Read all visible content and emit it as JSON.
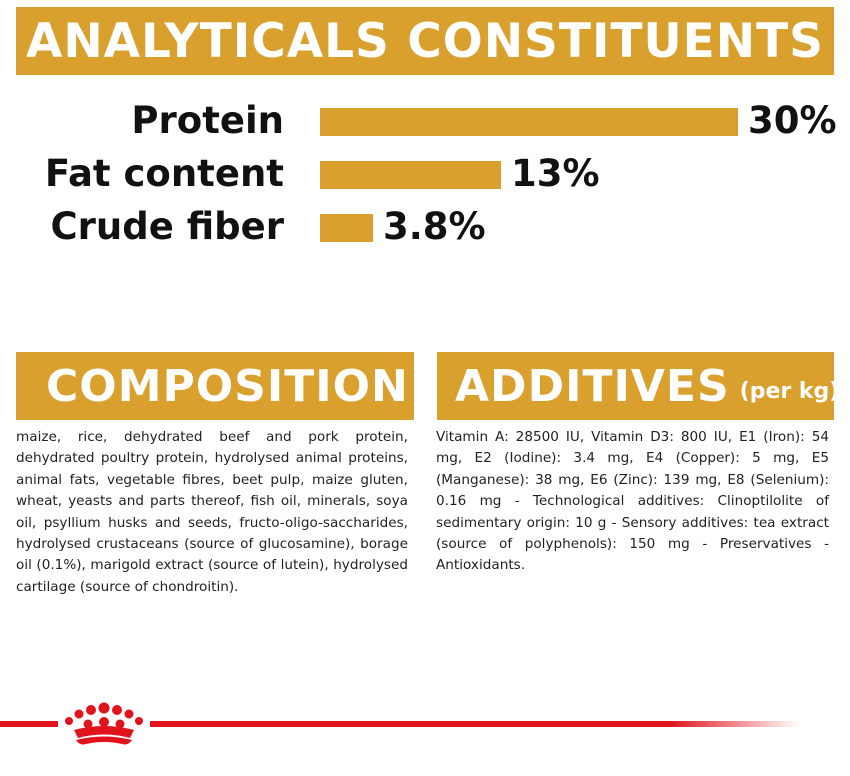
{
  "analytics": {
    "title": "ANALYTICALS CONSTITUENTS",
    "bar_color": "#d9a02d",
    "items": [
      {
        "label": "Protein",
        "value": "30%",
        "percent": 30
      },
      {
        "label": "Fat content",
        "value": "13%",
        "percent": 13
      },
      {
        "label": "Crude fiber",
        "value": "3.8%",
        "percent": 3.8
      }
    ]
  },
  "composition": {
    "title": "COMPOSITION",
    "text": "maize, rice, dehydrated beef and pork protein, dehydrated poultry protein, hydrolysed animal proteins, animal fats, vegetable fibres, beet pulp, maize gluten, wheat, yeasts and parts thereof, fish oil, minerals, soya oil, psyllium husks and seeds, fructo-oligo-saccharides, hydrolysed crustaceans (source of glucosamine), borage oil (0.1%), marigold extract (source of lutein), hydrolysed cartilage (source of chondroitin)."
  },
  "additives": {
    "title": "ADDITIVES",
    "subtitle": "(per kg)",
    "text": "Vitamin A: 28500 IU, Vitamin D3: 800 IU, E1 (Iron): 54 mg, E2 (Iodine): 3.4 mg, E4 (Copper): 5 mg, E5 (Manganese): 38 mg, E6 (Zinc): 139 mg, E8 (Selenium): 0.16 mg - Technological additives: Clinoptilolite of sedimentary origin: 10 g - Sensory additives: tea extract (source of polyphenols): 150 mg - Preservatives - Antioxidants."
  },
  "footer": {
    "logo_icon": "royal-canin-crown-icon",
    "brand_color": "#e1141d"
  }
}
